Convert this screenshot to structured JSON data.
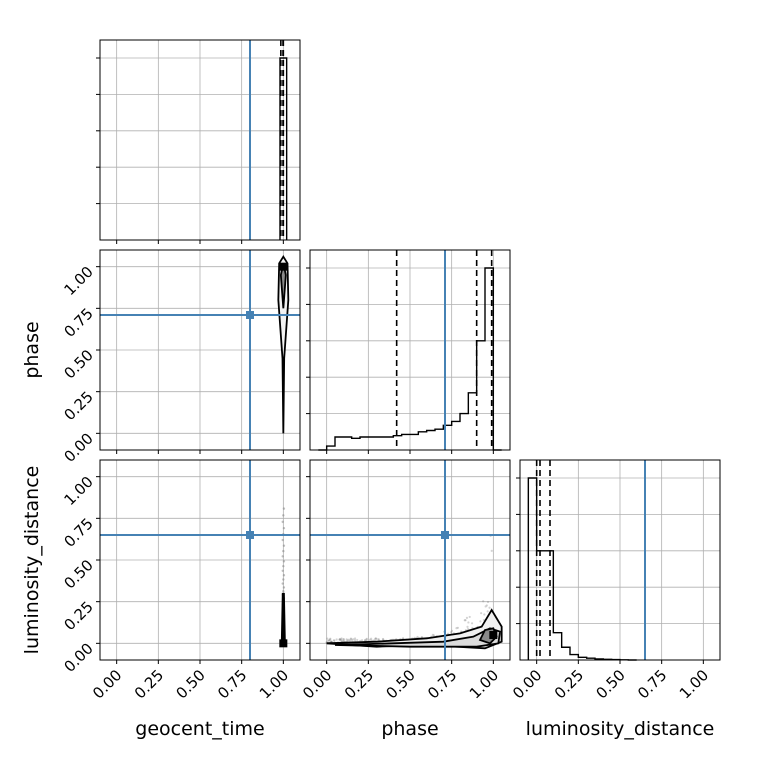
{
  "chart_data": {
    "type": "corner",
    "parameters": [
      "geocent_time",
      "phase",
      "luminosity_distance"
    ],
    "axis_labels": {
      "geocent_time": "geocent_time",
      "phase": "phase",
      "luminosity_distance": "luminosity_distance"
    },
    "tick_labels": [
      "0.00",
      "0.25",
      "0.50",
      "0.75",
      "1.00"
    ],
    "range": [
      -0.1,
      1.1
    ],
    "truths": {
      "geocent_time": 0.8,
      "phase": 0.71,
      "luminosity_distance": 0.65
    },
    "quantiles": {
      "geocent_time": [
        0.985,
        0.998,
        1.0
      ],
      "phase": [
        0.42,
        0.9,
        0.99
      ],
      "luminosity_distance": [
        0.0,
        0.02,
        0.08
      ]
    },
    "histograms": {
      "geocent_time": {
        "edges": [
          0.98,
          1.02
        ],
        "counts": [
          1.0
        ]
      },
      "phase": {
        "edges": [
          -0.05,
          0.0,
          0.05,
          0.1,
          0.15,
          0.2,
          0.25,
          0.3,
          0.35,
          0.4,
          0.45,
          0.5,
          0.55,
          0.6,
          0.65,
          0.7,
          0.75,
          0.8,
          0.85,
          0.9,
          0.95,
          1.0,
          1.05
        ],
        "counts": [
          0.0,
          0.015,
          0.05,
          0.05,
          0.045,
          0.05,
          0.05,
          0.05,
          0.05,
          0.055,
          0.06,
          0.06,
          0.07,
          0.075,
          0.08,
          0.095,
          0.11,
          0.14,
          0.22,
          0.42,
          0.7,
          0.0
        ]
      },
      "luminosity_distance": {
        "edges": [
          -0.05,
          0.0,
          0.05,
          0.1,
          0.15,
          0.2,
          0.25,
          0.3,
          0.35,
          0.4,
          0.45,
          0.5,
          0.55,
          0.6
        ],
        "counts": [
          1.0,
          0.6,
          0.6,
          0.15,
          0.07,
          0.03,
          0.015,
          0.01,
          0.006,
          0.004,
          0.002,
          0.001,
          0.0
        ]
      }
    },
    "joint": {
      "phase_vs_geocent_time": {
        "max_point": {
          "x": 1.0,
          "y": 1.0
        }
      },
      "luminosity_distance_vs_geocent_time": {
        "max_point": {
          "x": 1.0,
          "y": 0.0
        }
      },
      "luminosity_distance_vs_phase": {
        "max_point": {
          "x": 1.0,
          "y": 0.05
        }
      }
    },
    "colors": {
      "truth": "#4682b4",
      "hist": "#000000",
      "grid": "#b0b0b0",
      "points": "#808080"
    },
    "grid": true
  }
}
